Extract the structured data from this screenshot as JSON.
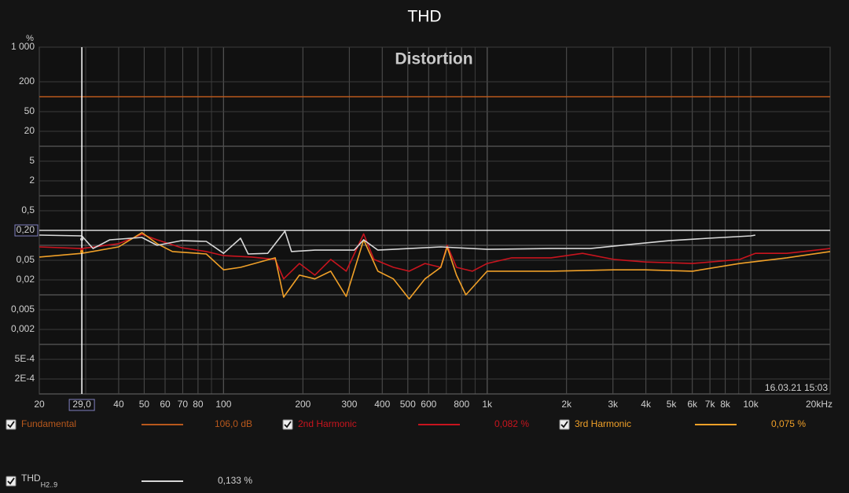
{
  "chart_data": {
    "type": "line",
    "title": "THD",
    "subtitle": "Distortion",
    "y_unit": "%",
    "timestamp": "16.03.21 15:03",
    "xlog": true,
    "ylog": true,
    "grid": true,
    "xlim": [
      20,
      20000
    ],
    "ylim": [
      0.0001,
      1000
    ],
    "xticks": [
      20,
      40,
      50,
      60,
      70,
      80,
      100,
      200,
      300,
      400,
      500,
      600,
      800,
      {
        "value": 1000,
        "label": "1k"
      },
      {
        "value": 2000,
        "label": "2k"
      },
      {
        "value": 3000,
        "label": "3k"
      },
      {
        "value": 4000,
        "label": "4k"
      },
      {
        "value": 5000,
        "label": "5k"
      },
      {
        "value": 6000,
        "label": "6k"
      },
      {
        "value": 7000,
        "label": "7k"
      },
      {
        "value": 8000,
        "label": "8k"
      },
      {
        "value": 10000,
        "label": "10k"
      },
      {
        "value": 20000,
        "label": "20kHz"
      }
    ],
    "yticks": [
      {
        "value": 1000,
        "label": "1 000"
      },
      200,
      50,
      20,
      5,
      2,
      {
        "value": 0.5,
        "label": "0,5"
      },
      {
        "value": 0.05,
        "label": "0,05"
      },
      {
        "value": 0.02,
        "label": "0,02"
      },
      {
        "value": 0.005,
        "label": "0,005"
      },
      {
        "value": 0.002,
        "label": "0,002"
      },
      {
        "value": 0.0005,
        "label": "5E-4"
      },
      {
        "value": 0.0002,
        "label": "2E-4"
      }
    ],
    "cursor": {
      "x": 29,
      "x_label": "29,0",
      "y": 0.2,
      "y_label": "0,20"
    },
    "series": [
      {
        "name": "Fundamental",
        "color": "#b8581c",
        "readout_label": "106,0 dB",
        "x": [
          20,
          20000
        ],
        "values": [
          100,
          100
        ]
      },
      {
        "name": "2nd Harmonic",
        "color": "#c8141e",
        "readout": 0.082,
        "readout_label": "0,082 %",
        "x": [
          20,
          29,
          40,
          49,
          56,
          69,
          86,
          100,
          128,
          157,
          169,
          194,
          222,
          255,
          292,
          340,
          372,
          441,
          506,
          581,
          667,
          705,
          765,
          878,
          1000,
          1240,
          1745,
          2300,
          3020,
          3980,
          6010,
          9080,
          10400,
          13700,
          20000
        ],
        "values": [
          0.093,
          0.086,
          0.108,
          0.167,
          0.129,
          0.09,
          0.075,
          0.062,
          0.058,
          0.052,
          0.021,
          0.043,
          0.025,
          0.052,
          0.03,
          0.17,
          0.052,
          0.036,
          0.03,
          0.043,
          0.036,
          0.1,
          0.036,
          0.03,
          0.043,
          0.056,
          0.056,
          0.069,
          0.052,
          0.046,
          0.043,
          0.052,
          0.069,
          0.069,
          0.086
        ]
      },
      {
        "name": "3rd Harmonic",
        "color": "#f0a028",
        "readout": 0.075,
        "readout_label": "0,075 %",
        "x": [
          20,
          29,
          40,
          49,
          56,
          64,
          86,
          100,
          116,
          157,
          169,
          194,
          222,
          255,
          292,
          340,
          385,
          441,
          506,
          581,
          667,
          705,
          765,
          830,
          1000,
          1745,
          3020,
          3980,
          6010,
          9080,
          13700,
          20000
        ],
        "values": [
          0.058,
          0.069,
          0.093,
          0.18,
          0.108,
          0.075,
          0.067,
          0.032,
          0.036,
          0.056,
          0.009,
          0.025,
          0.021,
          0.03,
          0.0093,
          0.129,
          0.03,
          0.021,
          0.0083,
          0.021,
          0.036,
          0.093,
          0.025,
          0.01,
          0.03,
          0.03,
          0.032,
          0.032,
          0.03,
          0.043,
          0.056,
          0.075
        ]
      },
      {
        "name": "THD",
        "name_sub": "H2..9",
        "color": "#d8d8d8",
        "readout": 0.133,
        "readout_label": "0,133 %",
        "x": [
          20,
          29,
          32,
          37,
          49,
          56,
          69,
          86,
          100,
          116,
          124,
          147,
          171,
          181,
          222,
          313,
          340,
          385,
          506,
          667,
          1000,
          1745,
          2460,
          3470,
          4900,
          6900,
          10000,
          10400
        ],
        "values": [
          0.161,
          0.155,
          0.086,
          0.129,
          0.144,
          0.1,
          0.124,
          0.12,
          0.069,
          0.139,
          0.067,
          0.069,
          0.193,
          0.075,
          0.08,
          0.08,
          0.129,
          0.08,
          0.086,
          0.093,
          0.083,
          0.086,
          0.086,
          0.104,
          0.124,
          0.139,
          0.155,
          0.161
        ]
      }
    ]
  }
}
